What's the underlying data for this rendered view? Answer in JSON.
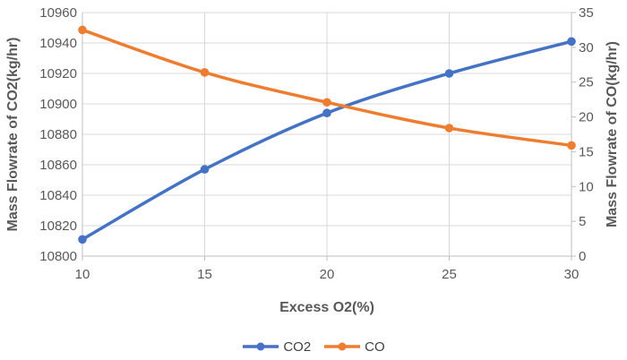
{
  "chart_data": {
    "type": "line",
    "smooth": true,
    "x": [
      10,
      15,
      20,
      25,
      30
    ],
    "xticks": [
      10,
      15,
      20,
      25,
      30
    ],
    "xlabel": "Excess O2(%)",
    "left_axis": {
      "label": "Mass Flowrate of CO2(kg/hr)",
      "range": [
        10800,
        10960
      ],
      "ticks": [
        10800,
        10820,
        10840,
        10860,
        10880,
        10900,
        10920,
        10940,
        10960
      ]
    },
    "right_axis": {
      "label": "Mass Flowrate of CO(kg/hr)",
      "range": [
        0,
        35
      ],
      "ticks": [
        0,
        5,
        10,
        15,
        20,
        25,
        30,
        35
      ]
    },
    "series": [
      {
        "name": "CO2",
        "axis": "left",
        "color": "#4472C4",
        "values": [
          10811,
          10857,
          10894,
          10920,
          10941
        ]
      },
      {
        "name": "CO",
        "axis": "right",
        "color": "#ED7D31",
        "values": [
          32.5,
          26.4,
          22.1,
          18.4,
          15.9
        ]
      }
    ],
    "grid": true,
    "legend_position": "bottom",
    "colors": {
      "gridline": "#D9D9D9",
      "axis_line": "#BFBFBF",
      "tick_text": "#595959",
      "title_text": "#595959",
      "background": "#FFFFFF"
    }
  }
}
